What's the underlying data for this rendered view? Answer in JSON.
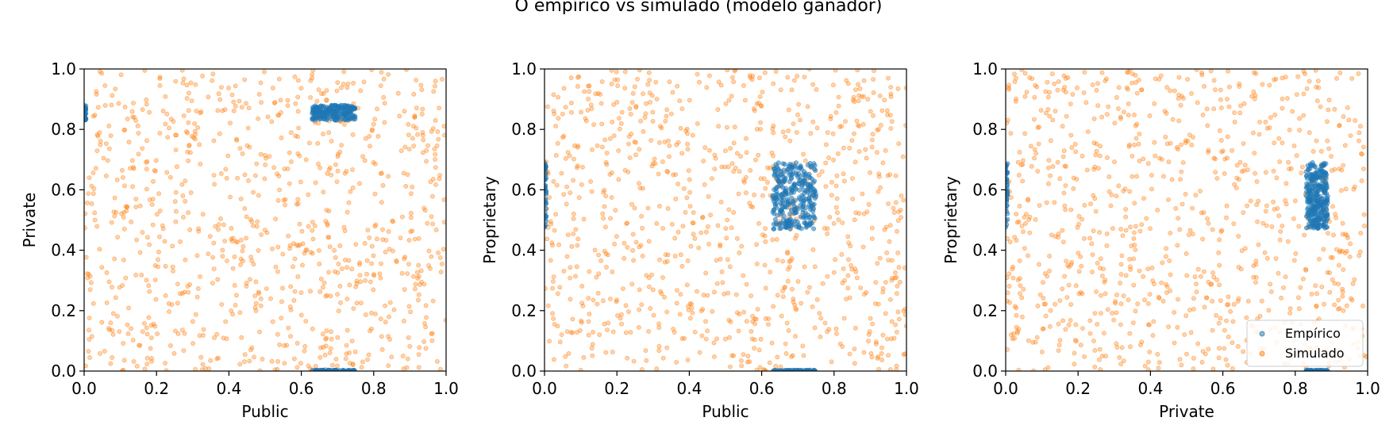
{
  "title": "O empírico vs simulado (modelo ganador)",
  "colors": {
    "empirico": "#1f77b4",
    "simulado": "#ff7f0e"
  },
  "chart_data": [
    {
      "type": "scatter",
      "xlabel": "Public",
      "ylabel": "Private",
      "xlim": [
        0,
        1
      ],
      "ylim": [
        0,
        1
      ],
      "xticks": [
        "0.0",
        "0.2",
        "0.4",
        "0.6",
        "0.8",
        "1.0"
      ],
      "yticks": [
        "0.0",
        "0.2",
        "0.4",
        "0.6",
        "0.8",
        "1.0"
      ],
      "legend": null,
      "series": [
        {
          "name": "Simulado",
          "distribution": "uniform",
          "x_range": [
            0,
            1
          ],
          "y_range": [
            0,
            1
          ],
          "n": 900
        },
        {
          "name": "Empírico",
          "clusters": [
            {
              "x_range": [
                0.63,
                0.75
              ],
              "y_range": [
                0.83,
                0.88
              ],
              "n": 220
            },
            {
              "x_range": [
                0.0,
                0.005
              ],
              "y_range": [
                0.83,
                0.88
              ],
              "n": 30
            },
            {
              "x_range": [
                0.63,
                0.75
              ],
              "y_range": [
                0.0,
                0.003
              ],
              "n": 60
            }
          ]
        }
      ]
    },
    {
      "type": "scatter",
      "xlabel": "Public",
      "ylabel": "Proprietary",
      "xlim": [
        0,
        1
      ],
      "ylim": [
        0,
        1
      ],
      "xticks": [
        "0.0",
        "0.2",
        "0.4",
        "0.6",
        "0.8",
        "1.0"
      ],
      "yticks": [
        "0.0",
        "0.2",
        "0.4",
        "0.6",
        "0.8",
        "1.0"
      ],
      "legend": null,
      "series": [
        {
          "name": "Simulado",
          "distribution": "uniform",
          "x_range": [
            0,
            1
          ],
          "y_range": [
            0,
            1
          ],
          "n": 900
        },
        {
          "name": "Empírico",
          "clusters": [
            {
              "x_range": [
                0.63,
                0.75
              ],
              "y_range": [
                0.47,
                0.69
              ],
              "n": 300
            },
            {
              "x_range": [
                0.0,
                0.005
              ],
              "y_range": [
                0.47,
                0.69
              ],
              "n": 40
            },
            {
              "x_range": [
                0.63,
                0.75
              ],
              "y_range": [
                0.0,
                0.003
              ],
              "n": 60
            }
          ]
        }
      ]
    },
    {
      "type": "scatter",
      "xlabel": "Private",
      "ylabel": "Proprietary",
      "xlim": [
        0,
        1
      ],
      "ylim": [
        0,
        1
      ],
      "xticks": [
        "0.0",
        "0.2",
        "0.4",
        "0.6",
        "0.8",
        "1.0"
      ],
      "yticks": [
        "0.0",
        "0.2",
        "0.4",
        "0.6",
        "0.8",
        "1.0"
      ],
      "legend": {
        "position": "lower right",
        "entries": [
          "Empírico",
          "Simulado"
        ]
      },
      "series": [
        {
          "name": "Simulado",
          "distribution": "uniform",
          "x_range": [
            0,
            1
          ],
          "y_range": [
            0,
            1
          ],
          "n": 900
        },
        {
          "name": "Empírico",
          "clusters": [
            {
              "x_range": [
                0.83,
                0.89
              ],
              "y_range": [
                0.47,
                0.69
              ],
              "n": 300
            },
            {
              "x_range": [
                0.0,
                0.005
              ],
              "y_range": [
                0.47,
                0.69
              ],
              "n": 40
            },
            {
              "x_range": [
                0.83,
                0.89
              ],
              "y_range": [
                0.0,
                0.003
              ],
              "n": 40
            }
          ]
        }
      ]
    }
  ]
}
